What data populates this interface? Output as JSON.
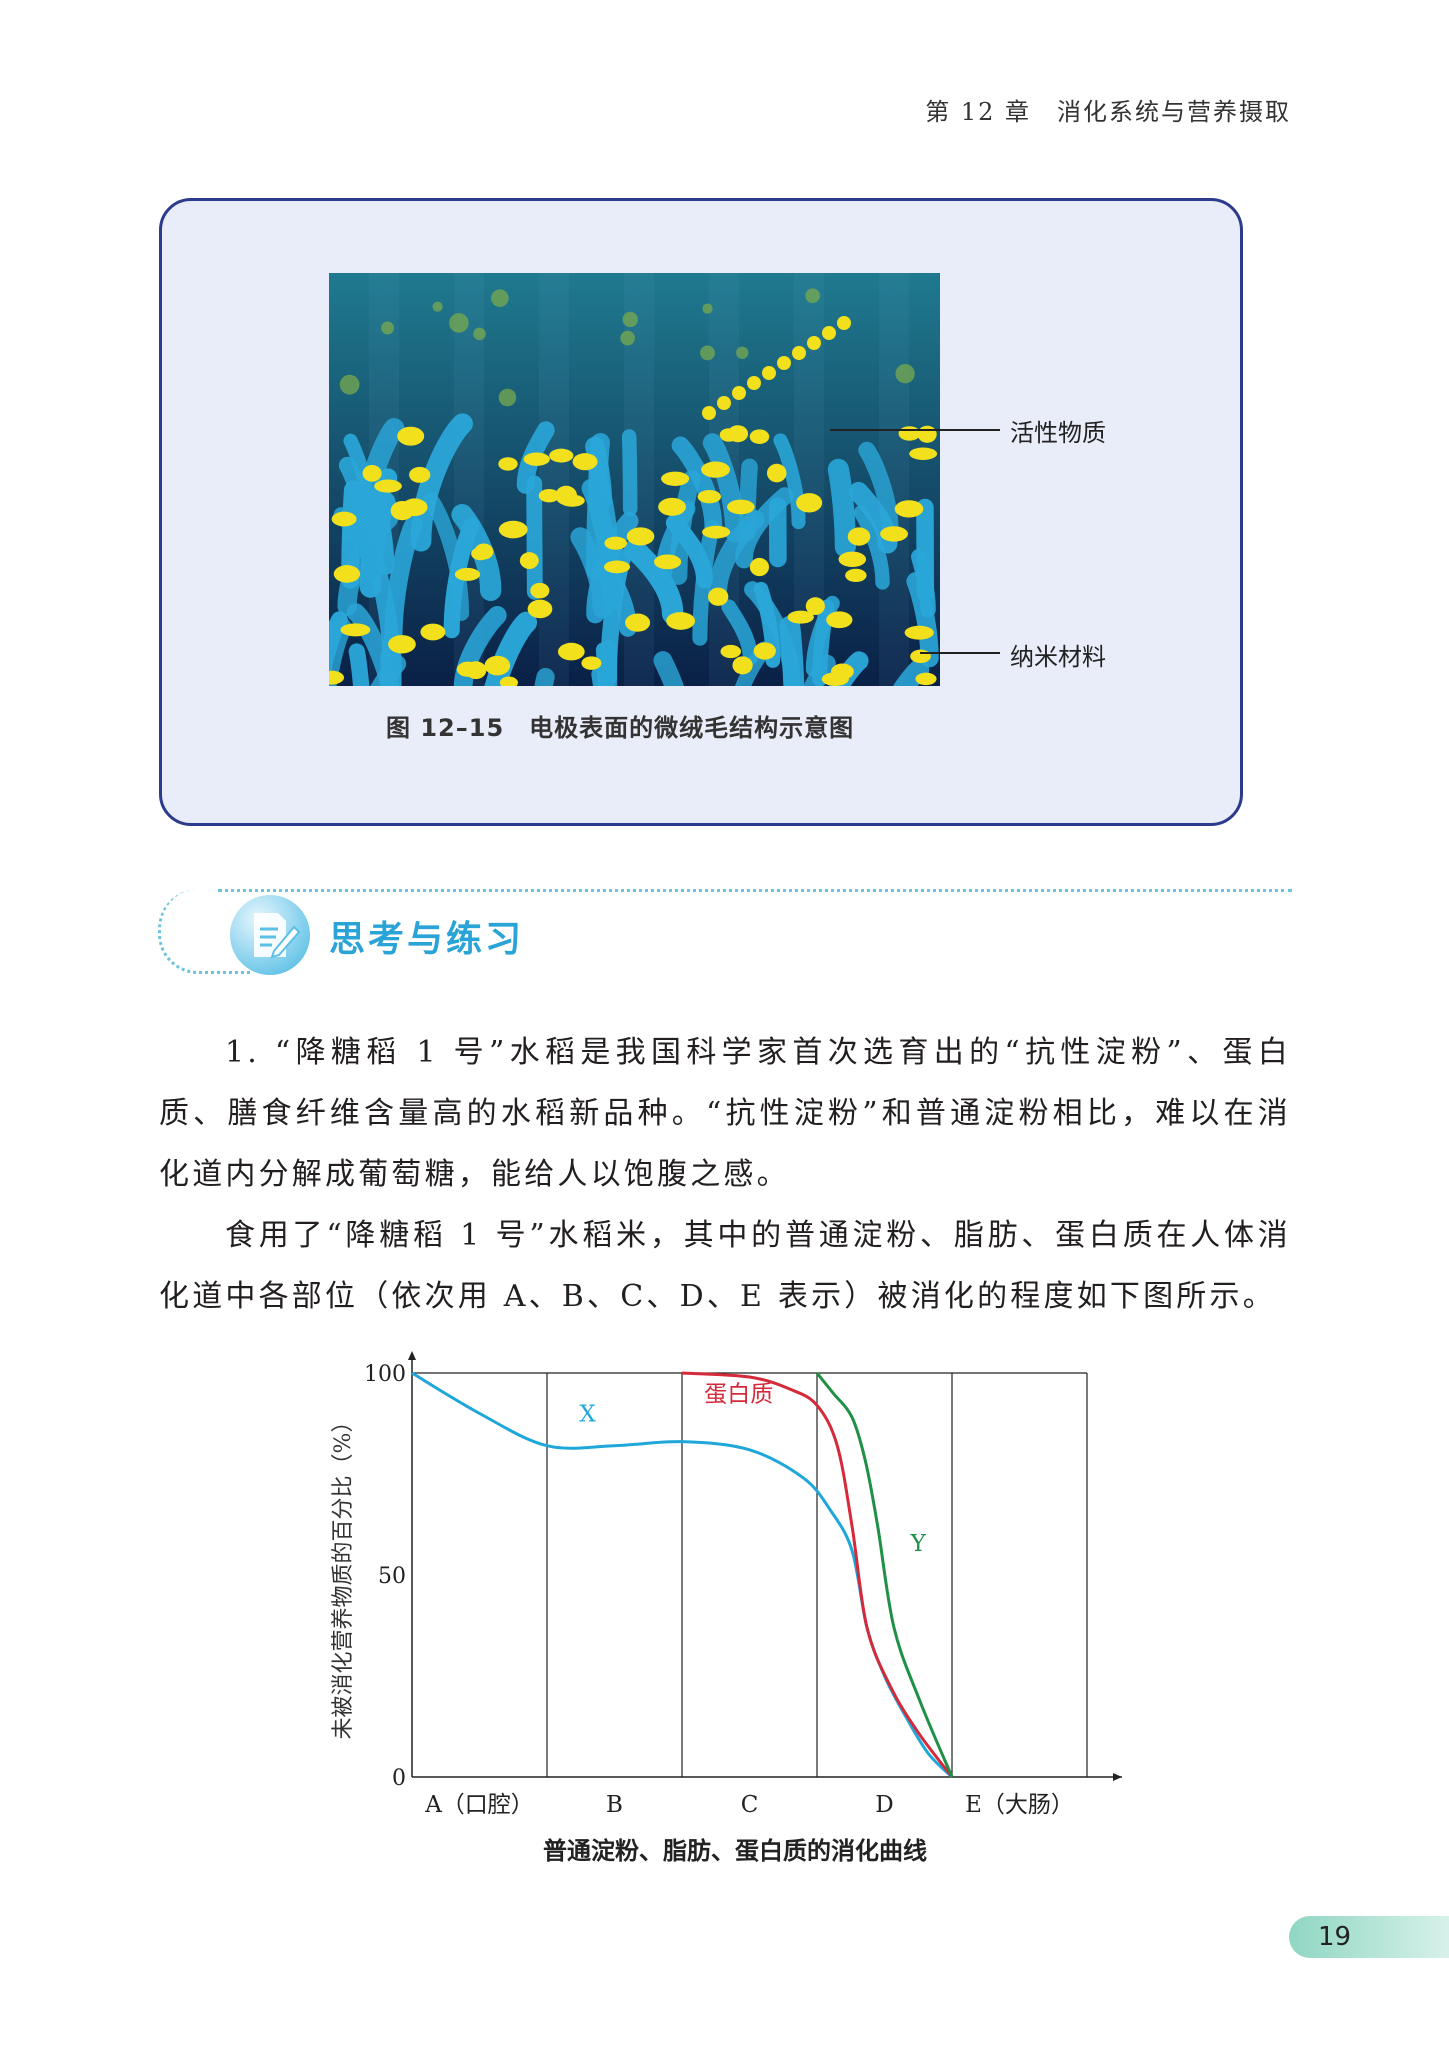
{
  "header": {
    "running_title": "第 12 章　消化系统与营养摄取"
  },
  "figure": {
    "caption": "图 12–15　电极表面的微绒毛结构示意图",
    "labels": [
      "活性物质",
      "纳米材料"
    ],
    "colors": {
      "tube": "#2aa6d8",
      "particle": "#f2e01c",
      "water_top": "#1f7a8f",
      "water_bottom": "#0a2046"
    }
  },
  "section": {
    "title": "思考与练习",
    "icon": "notepad-pencil-icon"
  },
  "paragraphs": [
    "1. “降糖稻 1 号”水稻是我国科学家首次选育出的“抗性淀粉”、蛋白质、膳食纤维含量高的水稻新品种。“抗性淀粉”和普通淀粉相比，难以在消化道内分解成葡萄糖，能给人以饱腹之感。",
    "食用了“降糖稻 1 号”水稻米，其中的普通淀粉、脂肪、蛋白质在人体消化道中各部位（依次用 A、B、C、D、E 表示）被消化的程度如下图所示。"
  ],
  "chart_data": {
    "type": "line",
    "title": "普通淀粉、脂肪、蛋白质的消化曲线",
    "ylabel": "未被消化营养物质的百分比（%）",
    "xlabel": "",
    "categories": [
      "A（口腔）",
      "B",
      "C",
      "D",
      "E（大肠）"
    ],
    "xlim": [
      0,
      5
    ],
    "ylim": [
      0,
      100
    ],
    "yticks": [
      0,
      50,
      100
    ],
    "grid": "vertical region dividers",
    "series": [
      {
        "name": "X",
        "color": "#1fa7d9",
        "points": [
          [
            0,
            100
          ],
          [
            0.5,
            90
          ],
          [
            1,
            82
          ],
          [
            1.5,
            82
          ],
          [
            2,
            83
          ],
          [
            2.5,
            81
          ],
          [
            2.9,
            74
          ],
          [
            3.1,
            66
          ],
          [
            3.26,
            56
          ],
          [
            3.37,
            37
          ],
          [
            3.5,
            25
          ],
          [
            3.64,
            16
          ],
          [
            3.82,
            6
          ],
          [
            4,
            0
          ]
        ]
      },
      {
        "name": "蛋白质",
        "color": "#d42a3a",
        "points": [
          [
            2,
            100
          ],
          [
            2.5,
            99
          ],
          [
            2.8,
            96
          ],
          [
            3,
            92
          ],
          [
            3.15,
            82
          ],
          [
            3.26,
            62
          ],
          [
            3.37,
            37
          ],
          [
            3.55,
            22
          ],
          [
            3.75,
            11
          ],
          [
            4,
            0
          ]
        ]
      },
      {
        "name": "Y",
        "color": "#1e9146",
        "points": [
          [
            3,
            100
          ],
          [
            3.12,
            95
          ],
          [
            3.26,
            89
          ],
          [
            3.36,
            78
          ],
          [
            3.45,
            62
          ],
          [
            3.57,
            37
          ],
          [
            3.76,
            19
          ],
          [
            4,
            0
          ]
        ]
      }
    ]
  },
  "page": {
    "number": "19"
  }
}
